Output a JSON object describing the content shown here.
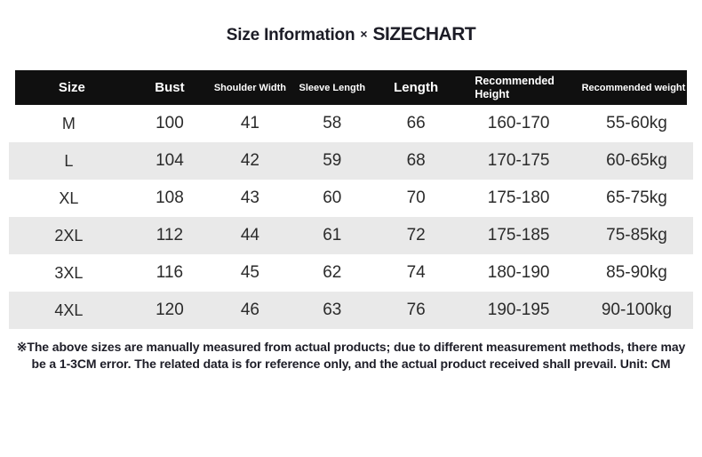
{
  "title": {
    "left": "Size Information",
    "separator": "×",
    "right": "SIZECHART"
  },
  "chart_data": {
    "type": "table",
    "title": "Size Information × SIZECHART",
    "columns": [
      "Size",
      "Bust",
      "Shoulder Width",
      "Sleeve Length",
      "Length",
      "Recommended Height",
      "Recommended weight"
    ],
    "rows": [
      [
        "M",
        "100",
        "41",
        "58",
        "66",
        "160-170",
        "55-60kg"
      ],
      [
        "L",
        "104",
        "42",
        "59",
        "68",
        "170-175",
        "60-65kg"
      ],
      [
        "XL",
        "108",
        "43",
        "60",
        "70",
        "175-180",
        "65-75kg"
      ],
      [
        "2XL",
        "112",
        "44",
        "61",
        "72",
        "175-185",
        "75-85kg"
      ],
      [
        "3XL",
        "116",
        "45",
        "62",
        "74",
        "180-190",
        "85-90kg"
      ],
      [
        "4XL",
        "120",
        "46",
        "63",
        "76",
        "190-195",
        "90-100kg"
      ]
    ],
    "unit": "CM"
  },
  "footnote": "※The above sizes are manually measured from actual products; due to different measurement methods, there may be a 1-3CM error. The related data is for reference only, and the actual product received shall prevail. Unit: CM",
  "colors": {
    "header_bg": "#101010",
    "header_text": "#ffffff",
    "row_stripe": "#e9e9e9",
    "row_plain": "#ffffff",
    "body_text": "#2b2b2b",
    "title_text": "#1c1c26"
  }
}
